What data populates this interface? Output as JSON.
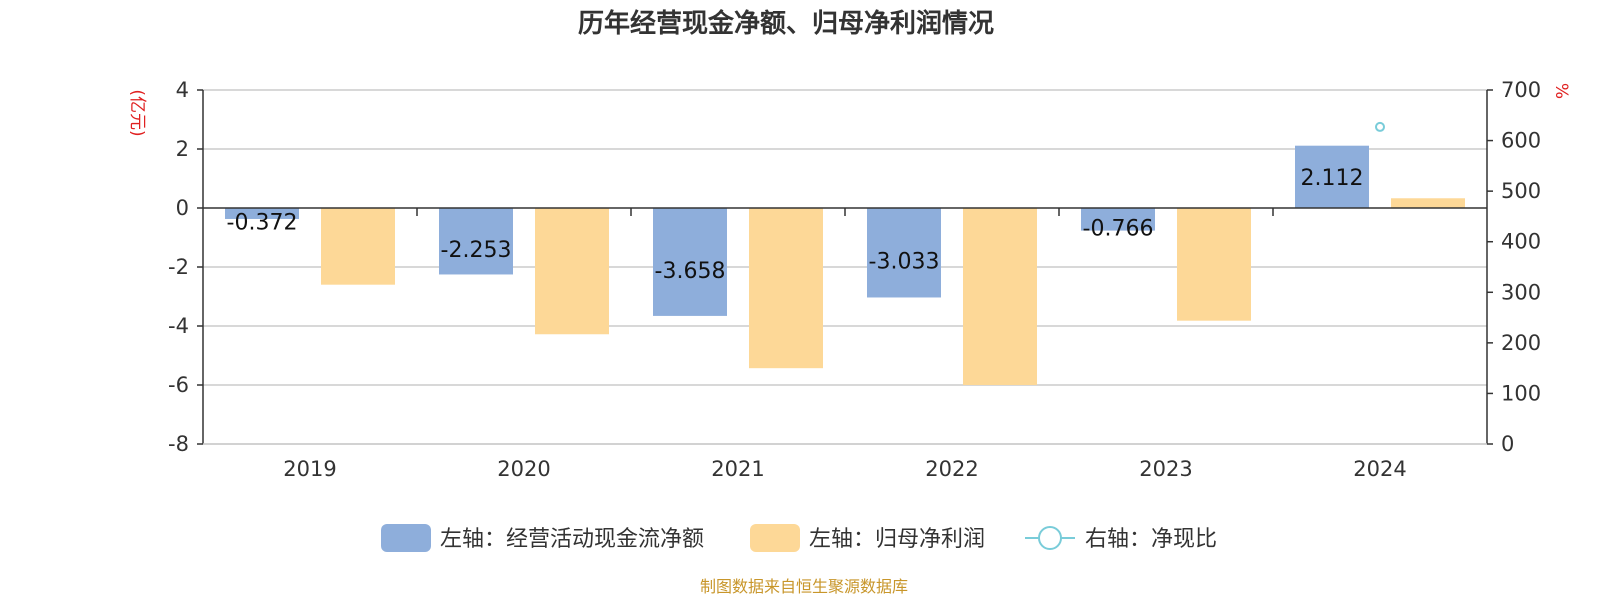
{
  "colors": {
    "cash_bar": "#8eaedb",
    "profit_bar": "#fdd897",
    "ratio_point": "#79ccd9",
    "unit_label": "#e02020",
    "source_text": "#c8962a",
    "grid": "#cccccc",
    "axis": "#333333"
  },
  "footer": {
    "source": "制图数据来自恒生聚源数据库"
  },
  "chart_data": {
    "type": "bar",
    "title": "历年经营现金净额、归母净利润情况",
    "categories": [
      "2019",
      "2020",
      "2021",
      "2022",
      "2023",
      "2024"
    ],
    "left_axis": {
      "unit": "(亿元)",
      "ylim": [
        -8,
        4
      ],
      "ticks": [
        "4",
        "2",
        "0",
        "-2",
        "-4",
        "-6",
        "-8"
      ],
      "tick_values": [
        4,
        2,
        0,
        -2,
        -4,
        -6,
        -8
      ]
    },
    "right_axis": {
      "unit": "%",
      "ylim": [
        0,
        700
      ],
      "ticks": [
        "700",
        "600",
        "500",
        "400",
        "300",
        "200",
        "100",
        "0"
      ],
      "tick_values": [
        700,
        600,
        500,
        400,
        300,
        200,
        100,
        0
      ]
    },
    "series": [
      {
        "name": "左轴：经营活动现金流净额",
        "axis": "left",
        "kind": "bar",
        "values": [
          -0.372,
          -2.253,
          -3.658,
          -3.033,
          -0.766,
          2.112
        ],
        "labels": [
          "-0.372",
          "-2.253",
          "-3.658",
          "-3.033",
          "-0.766",
          "2.112"
        ]
      },
      {
        "name": "左轴：归母净利润",
        "axis": "left",
        "kind": "bar",
        "values": [
          -2.6,
          -4.28,
          -5.43,
          -6.0,
          -3.82,
          0.33
        ]
      },
      {
        "name": "右轴：净现比",
        "axis": "right",
        "kind": "point",
        "values": [
          null,
          null,
          null,
          null,
          null,
          627
        ]
      }
    ],
    "grid": true,
    "legend_position": "bottom-center"
  }
}
